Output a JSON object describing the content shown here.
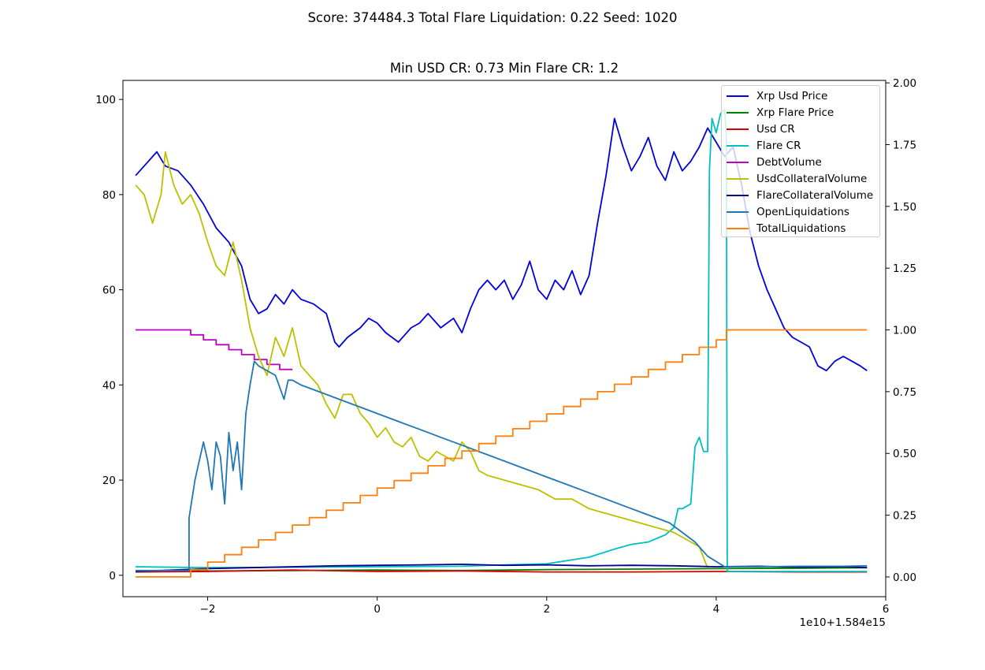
{
  "suptitle": "Score: 374484.3 Total Flare Liquidation: 0.22 Seed: 1020",
  "chart_data": {
    "type": "line",
    "title": "Min USD CR: 0.73 Min Flare CR: 1.2",
    "xlabel": "",
    "ylabel": "",
    "x_offset_label": "1e10+1.584e15",
    "xlim": [
      -3.0,
      6.0
    ],
    "ylim_left": [
      -4.5,
      104
    ],
    "ylim_right": [
      -0.08,
      2.01
    ],
    "x_ticks": [
      -2,
      0,
      2,
      4,
      6
    ],
    "y_ticks_left": [
      0,
      20,
      40,
      60,
      80,
      100
    ],
    "y_ticks_right": [
      "0.00",
      "0.25",
      "0.50",
      "0.75",
      "1.00",
      "1.25",
      "1.50",
      "1.75",
      "2.00"
    ],
    "grid": false,
    "legend_position": "top-right",
    "series": [
      {
        "name": "Xrp Usd Price",
        "axis": "left",
        "color": "#0000dd",
        "x": [
          -2.85,
          -2.75,
          -2.6,
          -2.5,
          -2.35,
          -2.2,
          -2.05,
          -1.9,
          -1.75,
          -1.6,
          -1.5,
          -1.4,
          -1.3,
          -1.2,
          -1.1,
          -1.0,
          -0.9,
          -0.75,
          -0.6,
          -0.5,
          -0.45,
          -0.35,
          -0.2,
          -0.1,
          0.0,
          0.1,
          0.25,
          0.4,
          0.5,
          0.6,
          0.75,
          0.9,
          1.0,
          1.1,
          1.2,
          1.3,
          1.4,
          1.5,
          1.6,
          1.7,
          1.8,
          1.9,
          2.0,
          2.1,
          2.2,
          2.3,
          2.4,
          2.5,
          2.6,
          2.7,
          2.8,
          2.9,
          3.0,
          3.1,
          3.2,
          3.3,
          3.4,
          3.5,
          3.6,
          3.7,
          3.8,
          3.9,
          4.0,
          4.1,
          4.2,
          4.3,
          4.4,
          4.5,
          4.6,
          4.7,
          4.8,
          4.9,
          5.0,
          5.1,
          5.2,
          5.3,
          5.4,
          5.5,
          5.6,
          5.7,
          5.78
        ],
        "y": [
          84,
          86,
          89,
          86,
          85,
          82,
          78,
          73,
          70,
          65,
          58,
          55,
          56,
          59,
          57,
          60,
          58,
          57,
          55,
          49,
          48,
          50,
          52,
          54,
          53,
          51,
          49,
          52,
          53,
          55,
          52,
          54,
          51,
          56,
          60,
          62,
          60,
          62,
          58,
          61,
          66,
          60,
          58,
          62,
          60,
          64,
          59,
          63,
          74,
          84,
          96,
          90,
          85,
          88,
          92,
          86,
          83,
          89,
          85,
          87,
          90,
          94,
          91,
          88,
          90,
          82,
          72,
          65,
          60,
          56,
          52,
          50,
          49,
          48,
          44,
          43,
          45,
          46,
          45,
          44,
          43
        ]
      },
      {
        "name": "Xrp Flare Price",
        "axis": "left",
        "color": "#008000",
        "x": [
          -2.85,
          -2.0,
          -1.0,
          0.0,
          1.0,
          2.0,
          3.0,
          4.0,
          5.0,
          5.78
        ],
        "y": [
          0.8,
          0.9,
          1.0,
          1.1,
          1.0,
          1.2,
          1.3,
          1.4,
          1.5,
          1.6
        ]
      },
      {
        "name": "Usd CR",
        "axis": "left",
        "color": "#dd0000",
        "x": [
          -2.85,
          -2.0,
          -1.0,
          0.0,
          1.0,
          2.0,
          3.0,
          4.0,
          5.0,
          5.78
        ],
        "y": [
          0.7,
          0.8,
          1.1,
          0.8,
          0.9,
          0.7,
          0.7,
          0.8,
          0.7,
          0.7
        ]
      },
      {
        "name": "Flare CR",
        "axis": "left",
        "color": "#00bfbf",
        "x": [
          -2.85,
          -2.0,
          -1.0,
          0.0,
          1.0,
          1.5,
          2.0,
          2.5,
          2.8,
          3.0,
          3.2,
          3.4,
          3.5,
          3.55,
          3.6,
          3.7,
          3.75,
          3.8,
          3.85,
          3.9,
          3.92,
          3.95,
          4.0,
          4.05,
          4.1,
          4.12,
          4.13,
          4.5,
          5.0,
          5.78
        ],
        "y": [
          1.8,
          1.6,
          1.7,
          1.8,
          1.9,
          2.2,
          2.4,
          3.8,
          5.5,
          6.5,
          7.0,
          8.5,
          10,
          14,
          14,
          15,
          27,
          29,
          26,
          26,
          85,
          96,
          93,
          97,
          98,
          92,
          0.8,
          0.8,
          0.8,
          0.8
        ]
      },
      {
        "name": "DebtVolume",
        "axis": "right",
        "color": "#bf00bf",
        "x": [
          -2.85,
          -2.2,
          -2.2,
          -2.05,
          -2.05,
          -1.9,
          -1.9,
          -1.75,
          -1.75,
          -1.6,
          -1.6,
          -1.45,
          -1.45,
          -1.3,
          -1.3,
          -1.15,
          -1.15,
          -1.0
        ],
        "y": [
          1.0,
          1.0,
          0.98,
          0.98,
          0.96,
          0.96,
          0.94,
          0.94,
          0.92,
          0.92,
          0.9,
          0.9,
          0.88,
          0.88,
          0.86,
          0.86,
          0.84,
          0.84
        ]
      },
      {
        "name": "UsdCollateralVolume",
        "axis": "left",
        "color": "#bfbf00",
        "x": [
          -2.85,
          -2.75,
          -2.65,
          -2.55,
          -2.5,
          -2.4,
          -2.3,
          -2.2,
          -2.1,
          -2.0,
          -1.9,
          -1.8,
          -1.7,
          -1.6,
          -1.5,
          -1.4,
          -1.3,
          -1.2,
          -1.1,
          -1.0,
          -0.9,
          -0.8,
          -0.7,
          -0.6,
          -0.5,
          -0.4,
          -0.3,
          -0.2,
          -0.1,
          0.0,
          0.1,
          0.2,
          0.3,
          0.4,
          0.5,
          0.6,
          0.7,
          0.8,
          0.9,
          1.0,
          1.1,
          1.2,
          1.3,
          1.5,
          1.7,
          1.9,
          2.1,
          2.3,
          2.5,
          2.7,
          2.9,
          3.1,
          3.3,
          3.5,
          3.6,
          3.7,
          3.8,
          3.9
        ],
        "y": [
          82,
          80,
          74,
          80,
          89,
          82,
          78,
          80,
          76,
          70,
          65,
          63,
          70,
          62,
          52,
          46,
          42,
          50,
          46,
          52,
          44,
          42,
          40,
          36,
          33,
          38,
          38,
          34,
          32,
          29,
          31,
          28,
          27,
          29,
          25,
          24,
          26,
          25,
          24,
          28,
          26,
          22,
          21,
          20,
          19,
          18,
          16,
          16,
          14,
          13,
          12,
          11,
          10,
          9,
          8,
          7,
          6,
          1.5
        ]
      },
      {
        "name": "FlareCollateralVolume",
        "axis": "left",
        "color": "#00008b",
        "x": [
          -2.85,
          -2.0,
          -1.5,
          -1.0,
          -0.5,
          0.0,
          0.5,
          1.0,
          1.5,
          2.0,
          2.5,
          3.0,
          3.5,
          4.0,
          4.5,
          5.0,
          5.5,
          5.78
        ],
        "y": [
          0.8,
          1.4,
          1.6,
          1.8,
          2.0,
          2.1,
          2.2,
          2.3,
          2.1,
          2.2,
          2.0,
          2.1,
          2.0,
          1.8,
          1.9,
          1.7,
          1.8,
          1.6
        ]
      },
      {
        "name": "OpenLiquidations",
        "axis": "left",
        "color": "#1f77b4",
        "x": [
          -2.85,
          -2.22,
          -2.22,
          -2.15,
          -2.05,
          -2.0,
          -1.95,
          -1.9,
          -1.85,
          -1.8,
          -1.75,
          -1.7,
          -1.65,
          -1.6,
          -1.55,
          -1.5,
          -1.45,
          -1.4,
          -1.3,
          -1.2,
          -1.1,
          -1.05,
          -1.0,
          -0.9,
          -0.75,
          -0.6,
          -0.45,
          -0.3,
          -0.15,
          0.0,
          0.15,
          0.3,
          0.45,
          0.6,
          0.75,
          0.9,
          1.05,
          1.2,
          1.35,
          1.5,
          1.65,
          1.8,
          1.95,
          2.1,
          2.25,
          2.4,
          2.55,
          2.7,
          2.85,
          3.0,
          3.15,
          3.3,
          3.45,
          3.6,
          3.75,
          3.9,
          4.1,
          4.5,
          5.0,
          5.5,
          5.78
        ],
        "y": [
          1.0,
          1.0,
          12,
          20,
          28,
          24,
          18,
          28,
          25,
          15,
          30,
          22,
          28,
          18,
          34,
          40,
          45,
          44,
          43,
          42,
          37,
          41,
          41,
          40,
          39,
          38,
          37,
          36,
          35,
          34,
          33,
          32,
          31,
          30,
          29,
          28,
          27,
          26,
          25,
          24,
          23,
          22,
          21,
          20,
          19,
          18,
          17,
          16,
          15,
          14,
          13,
          12,
          11,
          9,
          7,
          4,
          1.8,
          1.8,
          1.9,
          1.9,
          2.0
        ]
      },
      {
        "name": "TotalLiquidations",
        "axis": "right",
        "color": "#ff7f0e",
        "x": [
          -2.85,
          -2.2,
          -2.2,
          -2.0,
          -2.0,
          -1.8,
          -1.8,
          -1.6,
          -1.6,
          -1.4,
          -1.4,
          -1.2,
          -1.2,
          -1.0,
          -1.0,
          -0.8,
          -0.8,
          -0.6,
          -0.6,
          -0.4,
          -0.4,
          -0.2,
          -0.2,
          0.0,
          0.0,
          0.2,
          0.2,
          0.4,
          0.4,
          0.6,
          0.6,
          0.8,
          0.8,
          1.0,
          1.0,
          1.2,
          1.2,
          1.4,
          1.4,
          1.6,
          1.6,
          1.8,
          1.8,
          2.0,
          2.0,
          2.2,
          2.2,
          2.4,
          2.4,
          2.6,
          2.6,
          2.8,
          2.8,
          3.0,
          3.0,
          3.2,
          3.2,
          3.4,
          3.4,
          3.6,
          3.6,
          3.8,
          3.8,
          4.0,
          4.0,
          4.12,
          4.12,
          5.78
        ],
        "y": [
          0.0,
          0.0,
          0.03,
          0.03,
          0.06,
          0.06,
          0.09,
          0.09,
          0.12,
          0.12,
          0.15,
          0.15,
          0.18,
          0.18,
          0.21,
          0.21,
          0.24,
          0.24,
          0.27,
          0.27,
          0.3,
          0.3,
          0.33,
          0.33,
          0.36,
          0.36,
          0.39,
          0.39,
          0.42,
          0.42,
          0.45,
          0.45,
          0.48,
          0.48,
          0.51,
          0.51,
          0.54,
          0.54,
          0.57,
          0.57,
          0.6,
          0.6,
          0.63,
          0.63,
          0.66,
          0.66,
          0.69,
          0.69,
          0.72,
          0.72,
          0.75,
          0.75,
          0.78,
          0.78,
          0.81,
          0.81,
          0.84,
          0.84,
          0.87,
          0.87,
          0.9,
          0.9,
          0.93,
          0.93,
          0.96,
          0.96,
          1.0,
          1.0
        ]
      }
    ]
  }
}
